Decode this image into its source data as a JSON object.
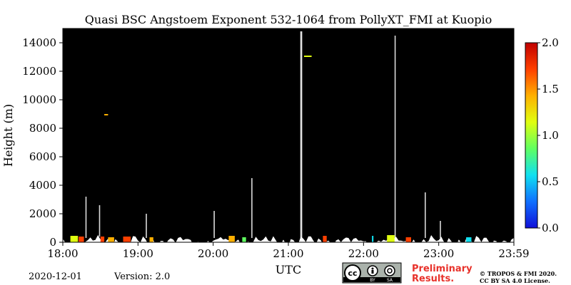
{
  "chart_data": {
    "type": "heatmap",
    "title": "Quasi BSC Angstoem Exponent 532-1064 from PollyXT_FMI at Kuopio",
    "xlabel": "UTC",
    "ylabel": "Height (m)",
    "x_ticks": [
      "18:00",
      "19:00",
      "20:00",
      "21:00",
      "22:00",
      "23:00",
      "23:59"
    ],
    "x_range_hours": [
      18.0,
      23.983
    ],
    "y_ticks": [
      0,
      2000,
      4000,
      6000,
      8000,
      10000,
      12000,
      14000
    ],
    "ylim": [
      0,
      15000
    ],
    "colorbar": {
      "ticks": [
        "0.0",
        "0.5",
        "1.0",
        "1.5",
        "2.0"
      ],
      "range": [
        0,
        2.0
      ],
      "colormap": "jet",
      "colors": [
        "#1010d8",
        "#1070ff",
        "#10e0f0",
        "#60ff60",
        "#e0ff10",
        "#ffb000",
        "#ff4000",
        "#c00000"
      ]
    },
    "background_color": "#000000",
    "cloud_base_m": 600,
    "retrievals": [
      {
        "t_start": 18.1,
        "t_end": 18.2,
        "h_start": 0,
        "h_end": 450,
        "value": 1.1
      },
      {
        "t_start": 18.21,
        "t_end": 18.28,
        "h_start": 0,
        "h_end": 400,
        "value": 1.7
      },
      {
        "t_start": 18.5,
        "t_end": 18.55,
        "h_start": 0,
        "h_end": 400,
        "value": 1.8
      },
      {
        "t_start": 18.6,
        "t_end": 18.68,
        "h_start": 0,
        "h_end": 350,
        "value": 1.5
      },
      {
        "t_start": 18.8,
        "t_end": 18.9,
        "h_start": 0,
        "h_end": 400,
        "value": 1.7
      },
      {
        "t_start": 19.15,
        "t_end": 19.2,
        "h_start": 0,
        "h_end": 350,
        "value": 1.3
      },
      {
        "t_start": 20.2,
        "t_end": 20.28,
        "h_start": 0,
        "h_end": 450,
        "value": 1.4
      },
      {
        "t_start": 20.38,
        "t_end": 20.43,
        "h_start": 0,
        "h_end": 350,
        "value": 0.9
      },
      {
        "t_start": 21.45,
        "t_end": 21.5,
        "h_start": 0,
        "h_end": 450,
        "value": 1.6
      },
      {
        "t_start": 22.1,
        "t_end": 22.12,
        "h_start": 0,
        "h_end": 450,
        "value": 0.5
      },
      {
        "t_start": 22.3,
        "t_end": 22.4,
        "h_start": 0,
        "h_end": 500,
        "value": 1.1
      },
      {
        "t_start": 22.55,
        "t_end": 22.62,
        "h_start": 0,
        "h_end": 350,
        "value": 1.6
      },
      {
        "t_start": 23.35,
        "t_end": 23.42,
        "h_start": 0,
        "h_end": 350,
        "value": 0.6
      },
      {
        "t_start": 18.55,
        "t_end": 18.6,
        "h_start": 8900,
        "h_end": 9000,
        "value": 1.3
      },
      {
        "t_start": 21.2,
        "t_end": 21.3,
        "h_start": 13000,
        "h_end": 13100,
        "value": 1.2
      }
    ]
  },
  "footer": {
    "date": "2020-12-01",
    "version": "Version: 2.0",
    "preliminary_line1": "Preliminary",
    "preliminary_line2": "Results.",
    "copyright_line1": "© TROPOS & FMI 2020.",
    "copyright_line2": "CC BY SA 4.0 License.",
    "license_badge": {
      "text_cc": "cc",
      "text_by": "BY",
      "text_sa": "SA"
    }
  }
}
